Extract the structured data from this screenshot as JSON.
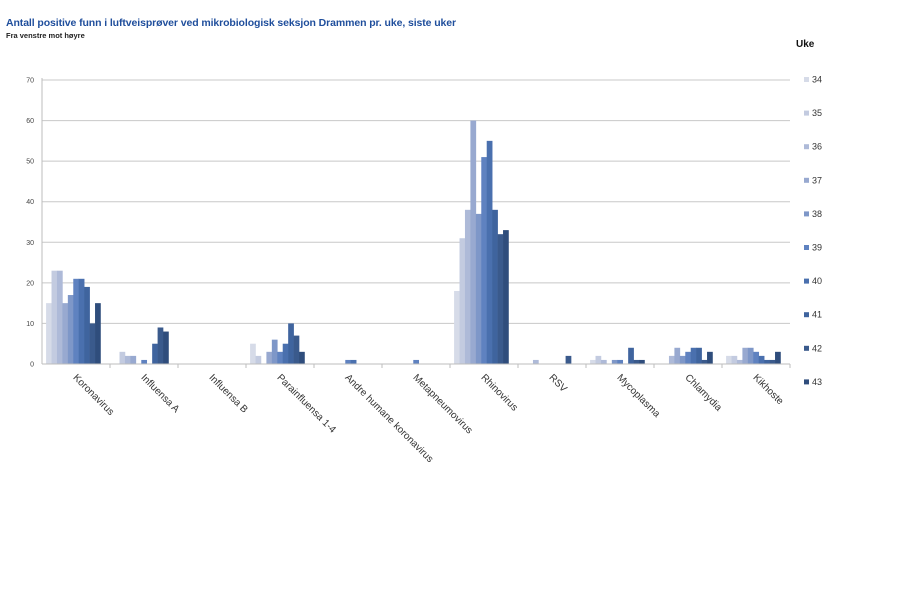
{
  "header": {
    "title": "Antall positive funn i luftveisprøver ved mikrobiologisk seksjon Drammen pr. uke, siste uker",
    "subtitle": "Fra venstre mot høyre"
  },
  "legend": {
    "title": "Uke",
    "position": "right"
  },
  "colors": {
    "title": "#1f4e9c",
    "gridline": "#c8c8c8",
    "series": [
      "#d6dbe8",
      "#c3cbe0",
      "#aebad8",
      "#98a9d0",
      "#7e97c8",
      "#5f82c0",
      "#4a70ae",
      "#3f649e",
      "#3a5a8c",
      "#2f4d7c"
    ]
  },
  "chart_data": {
    "type": "bar",
    "title": "Antall positive funn i luftveisprøver ved mikrobiologisk seksjon Drammen pr. uke, siste uker",
    "subtitle": "Fra venstre mot høyre",
    "xlabel": "",
    "ylabel": "",
    "ylim": [
      0,
      70
    ],
    "yticks": [
      0,
      10,
      20,
      30,
      40,
      50,
      60,
      70
    ],
    "grid": true,
    "legend_title": "Uke",
    "legend_position": "right",
    "categories": [
      "Koronavirus",
      "Influensa A",
      "Influensa B",
      "Parainfluensa 1-4",
      "Andre humane koronavirus",
      "Metapneumovirus",
      "Rhinovirus",
      "RSV",
      "Mycoplasma",
      "Chlamydia",
      "Kikhoste"
    ],
    "series": [
      {
        "name": "34",
        "values": [
          15,
          0,
          0,
          5,
          0,
          0,
          18,
          0,
          1,
          0,
          2
        ]
      },
      {
        "name": "35",
        "values": [
          23,
          3,
          0,
          2,
          0,
          0,
          31,
          0,
          2,
          0,
          2
        ]
      },
      {
        "name": "36",
        "values": [
          23,
          2,
          0,
          0,
          0,
          0,
          38,
          1,
          1,
          2,
          1
        ]
      },
      {
        "name": "37",
        "values": [
          15,
          2,
          0,
          3,
          0,
          0,
          60,
          0,
          0,
          4,
          4
        ]
      },
      {
        "name": "38",
        "values": [
          17,
          0,
          0,
          6,
          0,
          0,
          37,
          0,
          1,
          2,
          4
        ]
      },
      {
        "name": "39",
        "values": [
          21,
          1,
          0,
          3,
          1,
          1,
          51,
          0,
          1,
          3,
          3
        ]
      },
      {
        "name": "40",
        "values": [
          21,
          0,
          0,
          5,
          1,
          0,
          55,
          0,
          0,
          4,
          2
        ]
      },
      {
        "name": "41",
        "values": [
          19,
          5,
          0,
          10,
          0,
          0,
          38,
          0,
          4,
          4,
          1
        ]
      },
      {
        "name": "42",
        "values": [
          10,
          9,
          0,
          7,
          0,
          0,
          32,
          2,
          1,
          1,
          1
        ]
      },
      {
        "name": "43",
        "values": [
          15,
          8,
          0,
          3,
          0,
          0,
          33,
          0,
          1,
          3,
          3
        ]
      }
    ]
  }
}
